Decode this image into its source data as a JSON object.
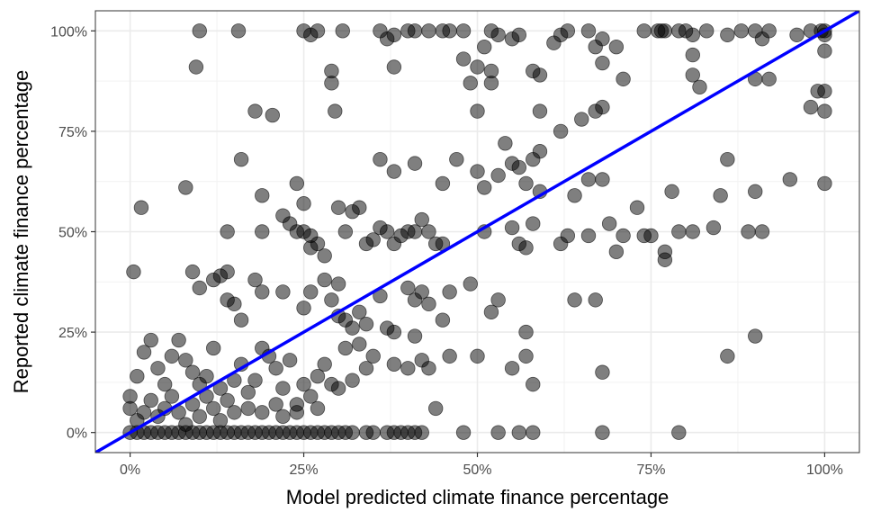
{
  "chart_data": {
    "type": "scatter",
    "title": "",
    "xlabel": "Model predicted climate finance percentage",
    "ylabel": "Reported climate finance percentage",
    "xlim": [
      -0.05,
      1.05
    ],
    "ylim": [
      -0.05,
      1.05
    ],
    "xticks": [
      0,
      0.25,
      0.5,
      0.75,
      1.0
    ],
    "yticks": [
      0,
      0.25,
      0.5,
      0.75,
      1.0
    ],
    "xtick_labels": [
      "0%",
      "25%",
      "50%",
      "75%",
      "100%"
    ],
    "ytick_labels": [
      "0%",
      "25%",
      "50%",
      "75%",
      "100%"
    ],
    "grid": true,
    "reference_line": {
      "slope": 1,
      "intercept": 0,
      "color": "#0000ff"
    },
    "point_color": "#000000",
    "point_opacity": 0.5,
    "points": [
      [
        0.1,
        1.0
      ],
      [
        0.156,
        1.0
      ],
      [
        0.25,
        1.0
      ],
      [
        0.26,
        0.99
      ],
      [
        0.27,
        1.0
      ],
      [
        0.306,
        1.0
      ],
      [
        0.36,
        1.0
      ],
      [
        0.37,
        0.98
      ],
      [
        0.38,
        0.99
      ],
      [
        0.4,
        1.0
      ],
      [
        0.41,
        1.0
      ],
      [
        0.43,
        1.0
      ],
      [
        0.45,
        1.0
      ],
      [
        0.46,
        1.0
      ],
      [
        0.48,
        1.0
      ],
      [
        0.52,
        1.0
      ],
      [
        0.53,
        0.99
      ],
      [
        0.55,
        0.98
      ],
      [
        0.56,
        0.99
      ],
      [
        0.62,
        0.99
      ],
      [
        0.63,
        1.0
      ],
      [
        0.66,
        1.0
      ],
      [
        0.74,
        1.0
      ],
      [
        0.76,
        1.0
      ],
      [
        0.765,
        1.0
      ],
      [
        0.77,
        1.0
      ],
      [
        0.79,
        1.0
      ],
      [
        0.8,
        1.0
      ],
      [
        0.81,
        0.99
      ],
      [
        0.83,
        1.0
      ],
      [
        0.86,
        0.99
      ],
      [
        0.88,
        1.0
      ],
      [
        0.9,
        1.0
      ],
      [
        0.91,
        0.98
      ],
      [
        0.92,
        1.0
      ],
      [
        0.96,
        0.99
      ],
      [
        0.98,
        1.0
      ],
      [
        0.995,
        1.0
      ],
      [
        1.0,
        1.0
      ],
      [
        1.0,
        0.99
      ],
      [
        0.095,
        0.91
      ],
      [
        0.29,
        0.9
      ],
      [
        0.29,
        0.87
      ],
      [
        0.38,
        0.91
      ],
      [
        0.48,
        0.93
      ],
      [
        0.51,
        0.96
      ],
      [
        0.5,
        0.91
      ],
      [
        0.52,
        0.9
      ],
      [
        0.49,
        0.87
      ],
      [
        0.52,
        0.87
      ],
      [
        0.58,
        0.9
      ],
      [
        0.59,
        0.89
      ],
      [
        0.61,
        0.97
      ],
      [
        0.67,
        0.96
      ],
      [
        0.68,
        0.98
      ],
      [
        0.68,
        0.92
      ],
      [
        0.7,
        0.96
      ],
      [
        0.71,
        0.88
      ],
      [
        0.81,
        0.94
      ],
      [
        0.81,
        0.89
      ],
      [
        0.82,
        0.86
      ],
      [
        0.9,
        0.88
      ],
      [
        0.92,
        0.88
      ],
      [
        0.99,
        0.85
      ],
      [
        1.0,
        0.85
      ],
      [
        1.0,
        0.95
      ],
      [
        0.18,
        0.8
      ],
      [
        0.205,
        0.79
      ],
      [
        0.295,
        0.8
      ],
      [
        0.5,
        0.8
      ],
      [
        0.59,
        0.8
      ],
      [
        0.62,
        0.75
      ],
      [
        0.65,
        0.78
      ],
      [
        0.67,
        0.8
      ],
      [
        0.68,
        0.81
      ],
      [
        0.98,
        0.81
      ],
      [
        1.0,
        0.8
      ],
      [
        0.16,
        0.68
      ],
      [
        0.36,
        0.68
      ],
      [
        0.38,
        0.65
      ],
      [
        0.41,
        0.67
      ],
      [
        0.45,
        0.62
      ],
      [
        0.47,
        0.68
      ],
      [
        0.5,
        0.65
      ],
      [
        0.51,
        0.61
      ],
      [
        0.53,
        0.64
      ],
      [
        0.54,
        0.72
      ],
      [
        0.55,
        0.67
      ],
      [
        0.56,
        0.66
      ],
      [
        0.57,
        0.62
      ],
      [
        0.58,
        0.68
      ],
      [
        0.59,
        0.6
      ],
      [
        0.59,
        0.7
      ],
      [
        0.64,
        0.59
      ],
      [
        0.66,
        0.63
      ],
      [
        0.68,
        0.63
      ],
      [
        0.78,
        0.6
      ],
      [
        0.85,
        0.59
      ],
      [
        0.86,
        0.68
      ],
      [
        0.9,
        0.6
      ],
      [
        0.95,
        0.63
      ],
      [
        1.0,
        0.62
      ],
      [
        0.016,
        0.56
      ],
      [
        0.08,
        0.61
      ],
      [
        0.14,
        0.5
      ],
      [
        0.19,
        0.59
      ],
      [
        0.24,
        0.62
      ],
      [
        0.25,
        0.57
      ],
      [
        0.19,
        0.5
      ],
      [
        0.22,
        0.54
      ],
      [
        0.23,
        0.52
      ],
      [
        0.24,
        0.5
      ],
      [
        0.25,
        0.5
      ],
      [
        0.26,
        0.49
      ],
      [
        0.26,
        0.46
      ],
      [
        0.27,
        0.47
      ],
      [
        0.28,
        0.44
      ],
      [
        0.3,
        0.56
      ],
      [
        0.32,
        0.55
      ],
      [
        0.31,
        0.5
      ],
      [
        0.33,
        0.56
      ],
      [
        0.34,
        0.47
      ],
      [
        0.35,
        0.48
      ],
      [
        0.36,
        0.51
      ],
      [
        0.37,
        0.5
      ],
      [
        0.38,
        0.47
      ],
      [
        0.39,
        0.49
      ],
      [
        0.4,
        0.5
      ],
      [
        0.41,
        0.5
      ],
      [
        0.42,
        0.53
      ],
      [
        0.43,
        0.5
      ],
      [
        0.44,
        0.47
      ],
      [
        0.45,
        0.47
      ],
      [
        0.51,
        0.5
      ],
      [
        0.55,
        0.51
      ],
      [
        0.56,
        0.47
      ],
      [
        0.57,
        0.46
      ],
      [
        0.58,
        0.52
      ],
      [
        0.62,
        0.47
      ],
      [
        0.63,
        0.49
      ],
      [
        0.66,
        0.49
      ],
      [
        0.69,
        0.52
      ],
      [
        0.7,
        0.45
      ],
      [
        0.71,
        0.49
      ],
      [
        0.73,
        0.56
      ],
      [
        0.74,
        0.49
      ],
      [
        0.75,
        0.49
      ],
      [
        0.77,
        0.45
      ],
      [
        0.77,
        0.43
      ],
      [
        0.79,
        0.5
      ],
      [
        0.81,
        0.5
      ],
      [
        0.84,
        0.51
      ],
      [
        0.89,
        0.5
      ],
      [
        0.91,
        0.5
      ],
      [
        0.005,
        0.4
      ],
      [
        0.09,
        0.4
      ],
      [
        0.1,
        0.36
      ],
      [
        0.12,
        0.38
      ],
      [
        0.13,
        0.39
      ],
      [
        0.14,
        0.4
      ],
      [
        0.14,
        0.33
      ],
      [
        0.15,
        0.32
      ],
      [
        0.16,
        0.28
      ],
      [
        0.18,
        0.38
      ],
      [
        0.19,
        0.35
      ],
      [
        0.22,
        0.35
      ],
      [
        0.25,
        0.31
      ],
      [
        0.26,
        0.35
      ],
      [
        0.28,
        0.38
      ],
      [
        0.29,
        0.33
      ],
      [
        0.3,
        0.29
      ],
      [
        0.3,
        0.37
      ],
      [
        0.31,
        0.28
      ],
      [
        0.32,
        0.26
      ],
      [
        0.33,
        0.3
      ],
      [
        0.34,
        0.27
      ],
      [
        0.36,
        0.34
      ],
      [
        0.37,
        0.26
      ],
      [
        0.38,
        0.25
      ],
      [
        0.4,
        0.36
      ],
      [
        0.41,
        0.33
      ],
      [
        0.42,
        0.35
      ],
      [
        0.43,
        0.32
      ],
      [
        0.45,
        0.28
      ],
      [
        0.46,
        0.35
      ],
      [
        0.49,
        0.37
      ],
      [
        0.52,
        0.3
      ],
      [
        0.53,
        0.33
      ],
      [
        0.57,
        0.25
      ],
      [
        0.64,
        0.33
      ],
      [
        0.67,
        0.33
      ],
      [
        0.86,
        0.19
      ],
      [
        0.9,
        0.24
      ],
      [
        0.0,
        0.09
      ],
      [
        0.01,
        0.14
      ],
      [
        0.02,
        0.2
      ],
      [
        0.03,
        0.23
      ],
      [
        0.04,
        0.16
      ],
      [
        0.05,
        0.12
      ],
      [
        0.06,
        0.19
      ],
      [
        0.07,
        0.23
      ],
      [
        0.08,
        0.18
      ],
      [
        0.09,
        0.15
      ],
      [
        0.1,
        0.12
      ],
      [
        0.11,
        0.14
      ],
      [
        0.12,
        0.21
      ],
      [
        0.13,
        0.11
      ],
      [
        0.14,
        0.08
      ],
      [
        0.15,
        0.13
      ],
      [
        0.16,
        0.17
      ],
      [
        0.17,
        0.1
      ],
      [
        0.18,
        0.13
      ],
      [
        0.19,
        0.21
      ],
      [
        0.2,
        0.19
      ],
      [
        0.21,
        0.16
      ],
      [
        0.22,
        0.11
      ],
      [
        0.23,
        0.18
      ],
      [
        0.24,
        0.07
      ],
      [
        0.25,
        0.12
      ],
      [
        0.26,
        0.09
      ],
      [
        0.27,
        0.14
      ],
      [
        0.28,
        0.17
      ],
      [
        0.29,
        0.12
      ],
      [
        0.3,
        0.11
      ],
      [
        0.31,
        0.21
      ],
      [
        0.32,
        0.13
      ],
      [
        0.33,
        0.22
      ],
      [
        0.34,
        0.16
      ],
      [
        0.35,
        0.19
      ],
      [
        0.38,
        0.17
      ],
      [
        0.4,
        0.16
      ],
      [
        0.41,
        0.24
      ],
      [
        0.42,
        0.18
      ],
      [
        0.43,
        0.16
      ],
      [
        0.44,
        0.06
      ],
      [
        0.46,
        0.19
      ],
      [
        0.5,
        0.19
      ],
      [
        0.55,
        0.16
      ],
      [
        0.57,
        0.19
      ],
      [
        0.58,
        0.12
      ],
      [
        0.68,
        0.15
      ],
      [
        0.0,
        0.06
      ],
      [
        0.01,
        0.03
      ],
      [
        0.02,
        0.05
      ],
      [
        0.03,
        0.08
      ],
      [
        0.04,
        0.04
      ],
      [
        0.05,
        0.06
      ],
      [
        0.06,
        0.09
      ],
      [
        0.07,
        0.05
      ],
      [
        0.08,
        0.02
      ],
      [
        0.09,
        0.07
      ],
      [
        0.1,
        0.04
      ],
      [
        0.11,
        0.09
      ],
      [
        0.12,
        0.06
      ],
      [
        0.13,
        0.03
      ],
      [
        0.15,
        0.05
      ],
      [
        0.17,
        0.06
      ],
      [
        0.19,
        0.05
      ],
      [
        0.21,
        0.07
      ],
      [
        0.22,
        0.04
      ],
      [
        0.24,
        0.05
      ],
      [
        0.27,
        0.06
      ],
      [
        0.0,
        0.0
      ],
      [
        0.01,
        0.0
      ],
      [
        0.02,
        0.0
      ],
      [
        0.03,
        0.0
      ],
      [
        0.04,
        0.0
      ],
      [
        0.05,
        0.0
      ],
      [
        0.06,
        0.0
      ],
      [
        0.07,
        0.0
      ],
      [
        0.08,
        0.0
      ],
      [
        0.09,
        0.0
      ],
      [
        0.1,
        0.0
      ],
      [
        0.11,
        0.0
      ],
      [
        0.12,
        0.0
      ],
      [
        0.13,
        0.0
      ],
      [
        0.14,
        0.0
      ],
      [
        0.15,
        0.0
      ],
      [
        0.16,
        0.0
      ],
      [
        0.17,
        0.0
      ],
      [
        0.18,
        0.0
      ],
      [
        0.19,
        0.0
      ],
      [
        0.2,
        0.0
      ],
      [
        0.21,
        0.0
      ],
      [
        0.22,
        0.0
      ],
      [
        0.23,
        0.0
      ],
      [
        0.24,
        0.0
      ],
      [
        0.25,
        0.0
      ],
      [
        0.26,
        0.0
      ],
      [
        0.27,
        0.0
      ],
      [
        0.28,
        0.0
      ],
      [
        0.29,
        0.0
      ],
      [
        0.3,
        0.0
      ],
      [
        0.31,
        0.0
      ],
      [
        0.32,
        0.0
      ],
      [
        0.34,
        0.0
      ],
      [
        0.35,
        0.0
      ],
      [
        0.37,
        0.0
      ],
      [
        0.38,
        0.0
      ],
      [
        0.39,
        0.0
      ],
      [
        0.4,
        0.0
      ],
      [
        0.41,
        0.0
      ],
      [
        0.42,
        0.0
      ],
      [
        0.48,
        0.0
      ],
      [
        0.53,
        0.0
      ],
      [
        0.56,
        0.0
      ],
      [
        0.58,
        0.0
      ],
      [
        0.68,
        0.0
      ],
      [
        0.79,
        0.0
      ]
    ]
  }
}
